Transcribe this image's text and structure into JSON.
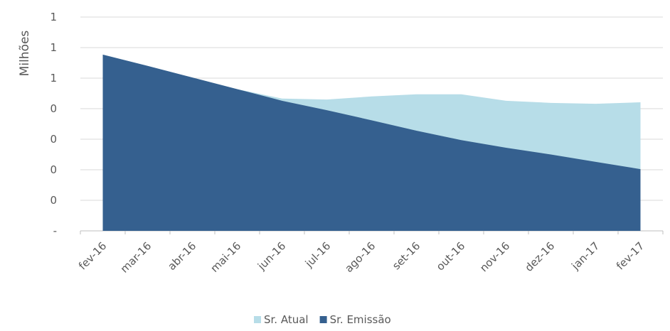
{
  "chart_data": {
    "type": "area",
    "y_label": "Milhões",
    "categories": [
      "fev-16",
      "mar-16",
      "abr-16",
      "mai-16",
      "jun-16",
      "jul-16",
      "ago-16",
      "set-16",
      "out-16",
      "nov-16",
      "dez-16",
      "jan-17",
      "fev-17"
    ],
    "series": [
      {
        "name": "Sr. Atual",
        "color": "#b7dde8",
        "values": [
          0.577,
          0.54,
          0.502,
          0.464,
          0.433,
          0.43,
          0.44,
          0.447,
          0.447,
          0.426,
          0.419,
          0.416,
          0.421
        ]
      },
      {
        "name": "Sr. Emissão",
        "color": "#35608f",
        "values": [
          0.577,
          0.54,
          0.502,
          0.464,
          0.426,
          0.395,
          0.362,
          0.328,
          0.297,
          0.272,
          0.25,
          0.226,
          0.202
        ]
      }
    ],
    "ylim": [
      0,
      0.7
    ],
    "yticks": [
      {
        "value": 0,
        "label": "-"
      },
      {
        "value": 0.1,
        "label": "0"
      },
      {
        "value": 0.2,
        "label": "0"
      },
      {
        "value": 0.3,
        "label": "0"
      },
      {
        "value": 0.4,
        "label": "0"
      },
      {
        "value": 0.5,
        "label": "1"
      },
      {
        "value": 0.6,
        "label": "1"
      },
      {
        "value": 0.7,
        "label": "1"
      }
    ],
    "grid": true
  }
}
